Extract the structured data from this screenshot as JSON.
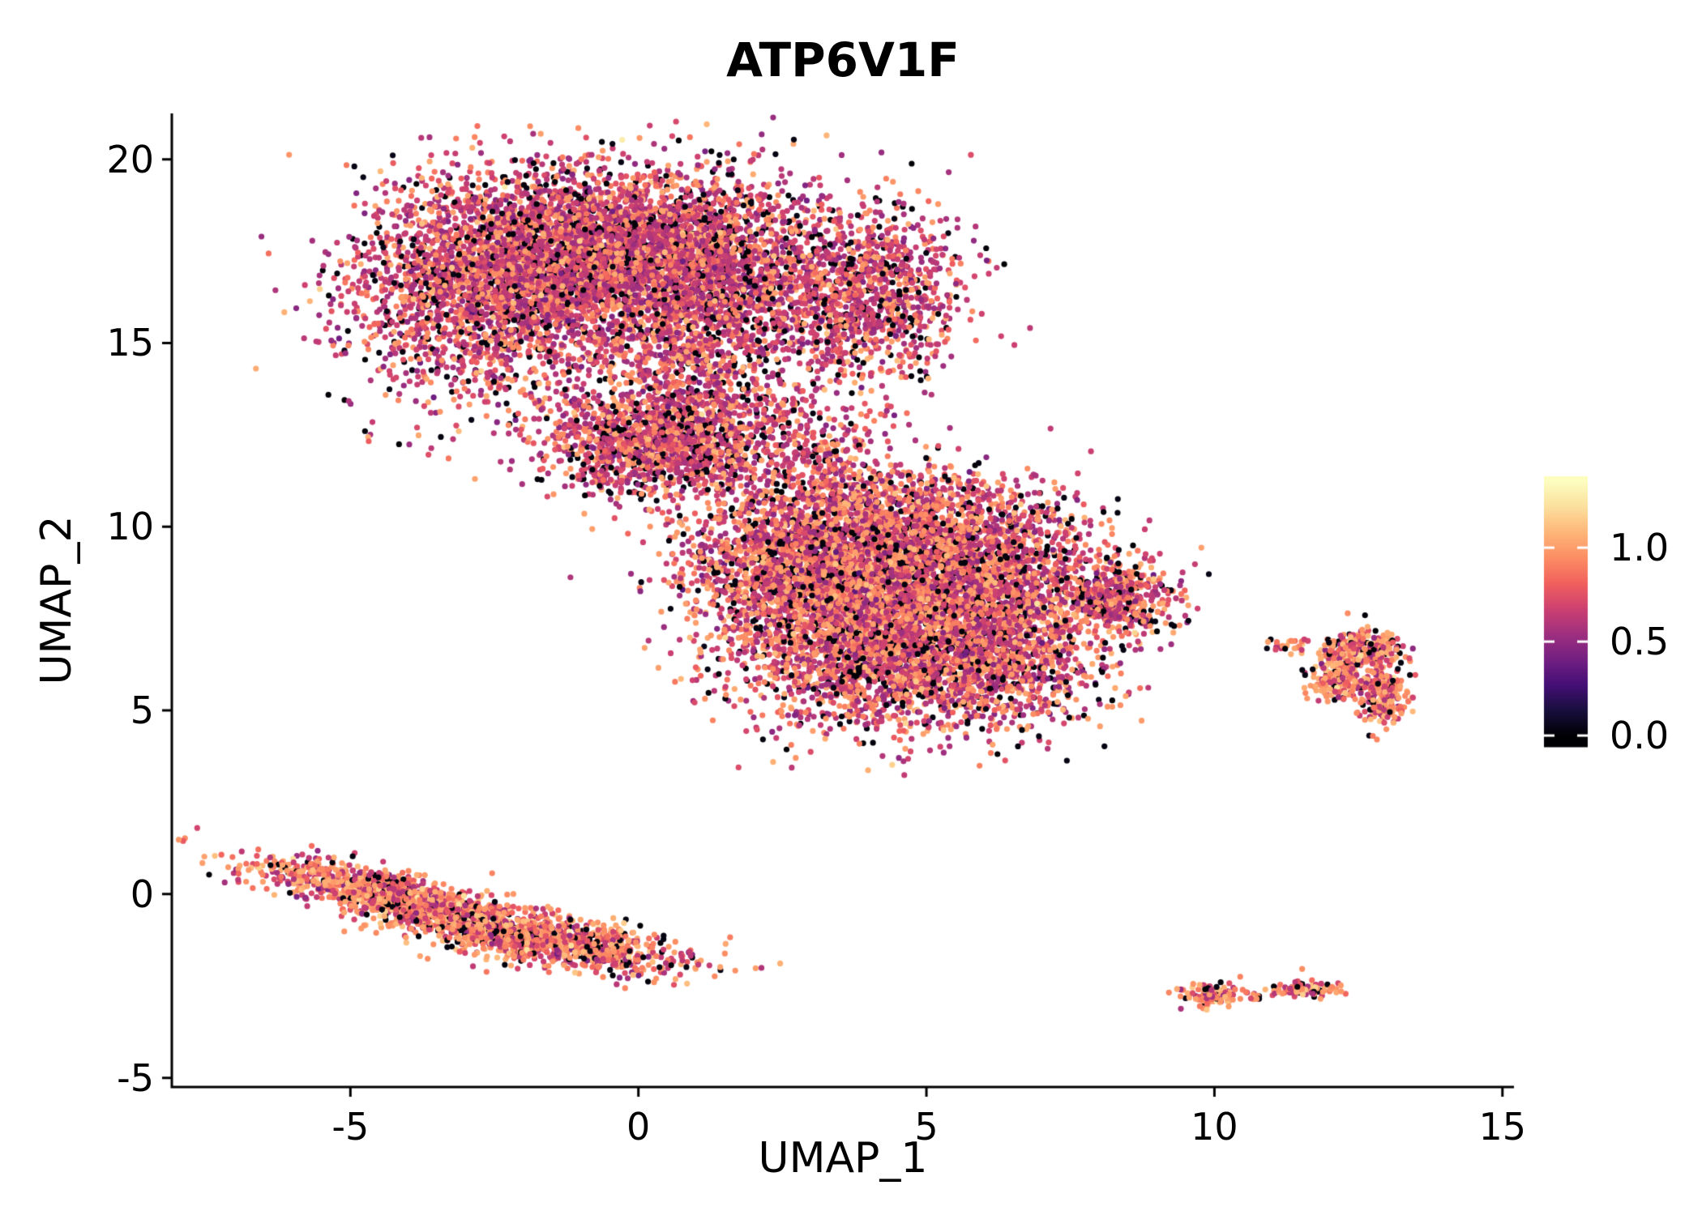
{
  "page": {
    "background": "#ffffff"
  },
  "chart_data": {
    "type": "scatter",
    "title": "ATP6V1F",
    "xlabel": "UMAP_1",
    "ylabel": "UMAP_2",
    "xlim": [
      -8.1,
      15.2
    ],
    "ylim": [
      -5.25,
      21.25
    ],
    "x_ticks": {
      "values": [
        -5,
        0,
        5,
        10,
        15
      ],
      "labels": [
        "-5",
        "0",
        "5",
        "10",
        "15"
      ]
    },
    "y_ticks": {
      "values": [
        -5,
        0,
        5,
        10,
        15,
        20
      ],
      "labels": [
        "-5",
        "0",
        "5",
        "10",
        "15",
        "20"
      ]
    },
    "grid": false,
    "legend_position": "colorbar-right",
    "point_radius_px": 3.6,
    "seed": 42,
    "colorbar": {
      "tick_labels": [
        "1.0",
        "0.5",
        "0.0"
      ],
      "tick_values": [
        1.0,
        0.5,
        0.0
      ],
      "bar_value_min": -0.06,
      "bar_value_max": 1.38,
      "data_value_min": 0.0,
      "data_value_max": 1.35,
      "colormap_name": "magma",
      "colormap_stops": [
        [
          0.0,
          "#000004"
        ],
        [
          0.1,
          "#180f3d"
        ],
        [
          0.2,
          "#440f76"
        ],
        [
          0.3,
          "#721f81"
        ],
        [
          0.4,
          "#9e2f7f"
        ],
        [
          0.5,
          "#cd4071"
        ],
        [
          0.6,
          "#f1605d"
        ],
        [
          0.7,
          "#fc8c63"
        ],
        [
          0.8,
          "#feb577"
        ],
        [
          0.9,
          "#fcde9c"
        ],
        [
          1.0,
          "#fcfdbf"
        ]
      ],
      "tick_color": "#ffffff"
    },
    "expression_profiles": {
      "mid_dominant": {
        "p_zero": 0.13,
        "p_mid": 0.6,
        "mid_mean": 0.63,
        "mid_sd": 0.09,
        "high_mean": 0.96,
        "high_sd": 0.08
      },
      "balanced": {
        "p_zero": 0.12,
        "p_mid": 0.48,
        "mid_mean": 0.63,
        "mid_sd": 0.09,
        "high_mean": 0.97,
        "high_sd": 0.08
      },
      "high_dominant": {
        "p_zero": 0.1,
        "p_mid": 0.33,
        "mid_mean": 0.65,
        "mid_sd": 0.09,
        "high_mean": 0.98,
        "high_sd": 0.09
      }
    },
    "clusters": [
      {
        "region": "top_left_blob",
        "n": 2600,
        "cx": -2.5,
        "cy": 16.6,
        "sx": 1.25,
        "sy": 1.5,
        "rot": 0,
        "profile": "mid_dominant"
      },
      {
        "region": "top_left_blob",
        "n": 2600,
        "cx": -0.4,
        "cy": 17.5,
        "sx": 1.4,
        "sy": 1.1,
        "rot": 0,
        "profile": "mid_dominant"
      },
      {
        "region": "top_left_blob",
        "n": 1500,
        "cx": 1.2,
        "cy": 16.8,
        "sx": 1.0,
        "sy": 1.4,
        "rot": 0,
        "profile": "mid_dominant"
      },
      {
        "region": "top_left_right_lobe",
        "n": 1200,
        "cx": 3.9,
        "cy": 16.4,
        "sx": 0.85,
        "sy": 1.25,
        "rot": 0,
        "profile": "mid_dominant"
      },
      {
        "region": "neck_dense",
        "n": 1300,
        "cx": 0.3,
        "cy": 12.3,
        "sx": 0.95,
        "sy": 0.75,
        "rot": 0,
        "profile": "mid_dominant"
      },
      {
        "region": "neck_sparse",
        "n": 450,
        "cx": 1.0,
        "cy": 14.0,
        "sx": 1.1,
        "sy": 1.0,
        "rot": 0,
        "profile": "mid_dominant"
      },
      {
        "region": "bridge_sparse",
        "n": 260,
        "cx": 2.3,
        "cy": 12.3,
        "sx": 0.9,
        "sy": 0.9,
        "rot": 0,
        "profile": "mid_dominant"
      },
      {
        "region": "bridge_sparse",
        "n": 150,
        "cx": 3.2,
        "cy": 11.8,
        "sx": 0.9,
        "sy": 0.7,
        "rot": 0,
        "profile": "balanced"
      },
      {
        "region": "central_blob",
        "n": 2200,
        "cx": 3.2,
        "cy": 9.2,
        "sx": 1.15,
        "sy": 1.0,
        "rot": 0,
        "profile": "balanced"
      },
      {
        "region": "central_blob",
        "n": 2200,
        "cx": 5.4,
        "cy": 9.0,
        "sx": 1.25,
        "sy": 1.05,
        "rot": 0,
        "profile": "balanced"
      },
      {
        "region": "central_blob",
        "n": 2200,
        "cx": 3.9,
        "cy": 6.8,
        "sx": 1.25,
        "sy": 1.15,
        "rot": 0,
        "profile": "balanced"
      },
      {
        "region": "central_blob",
        "n": 1500,
        "cx": 6.1,
        "cy": 6.6,
        "sx": 1.0,
        "sy": 1.05,
        "rot": 0,
        "profile": "balanced"
      },
      {
        "region": "central_blob_arm",
        "n": 450,
        "cx": 8.3,
        "cy": 8.0,
        "sx": 0.55,
        "sy": 0.5,
        "rot": 0,
        "profile": "balanced"
      },
      {
        "region": "central_blob_top",
        "n": 280,
        "cx": 4.6,
        "cy": 10.9,
        "sx": 1.2,
        "sy": 0.45,
        "rot": 0,
        "profile": "balanced"
      },
      {
        "region": "right_small_cluster",
        "n": 280,
        "cx": 12.6,
        "cy": 6.6,
        "sx": 0.34,
        "sy": 0.28,
        "rot": 0,
        "profile": "high_dominant"
      },
      {
        "region": "right_small_cluster",
        "n": 220,
        "cx": 12.9,
        "cy": 5.4,
        "sx": 0.22,
        "sy": 0.42,
        "rot": 0,
        "profile": "high_dominant"
      },
      {
        "region": "right_small_cluster",
        "n": 170,
        "cx": 12.15,
        "cy": 5.85,
        "sx": 0.28,
        "sy": 0.33,
        "rot": 0,
        "profile": "high_dominant"
      },
      {
        "region": "right_small_outliers",
        "n": 26,
        "cx": 11.3,
        "cy": 6.75,
        "sx": 0.22,
        "sy": 0.12,
        "rot": 0,
        "profile": "high_dominant"
      },
      {
        "region": "bottom_left_streak",
        "n": 1200,
        "cx": -4.1,
        "cy": -0.15,
        "sx": 1.35,
        "sy": 0.3,
        "rot": -20,
        "profile": "high_dominant"
      },
      {
        "region": "bottom_left_streak",
        "n": 1000,
        "cx": -1.6,
        "cy": -1.25,
        "sx": 1.25,
        "sy": 0.32,
        "rot": -14,
        "profile": "high_dominant"
      },
      {
        "region": "bottom_right_small",
        "n": 130,
        "cx": 10.0,
        "cy": -2.75,
        "sx": 0.28,
        "sy": 0.16,
        "rot": 0,
        "profile": "high_dominant"
      },
      {
        "region": "bottom_right_small",
        "n": 12,
        "cx": 10.75,
        "cy": -2.8,
        "sx": 0.07,
        "sy": 0.05,
        "rot": 0,
        "profile": "high_dominant"
      },
      {
        "region": "bottom_right_small",
        "n": 90,
        "cx": 11.55,
        "cy": -2.6,
        "sx": 0.33,
        "sy": 0.11,
        "rot": 0,
        "profile": "high_dominant"
      }
    ]
  }
}
